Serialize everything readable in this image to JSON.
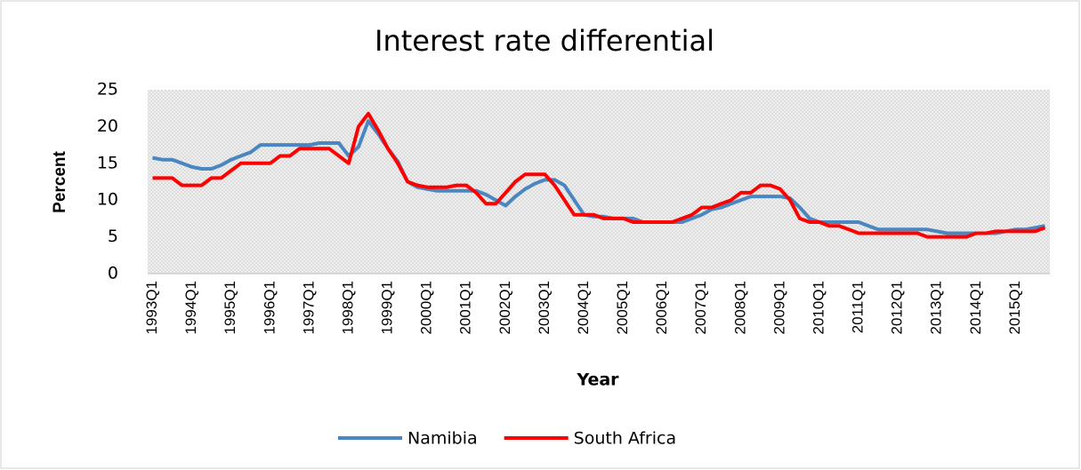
{
  "chart_data": {
    "type": "line",
    "title": "Interest rate differential",
    "x_label": "Year",
    "y_label": "Percent",
    "categories": [
      "1993Q1",
      null,
      null,
      null,
      "1994Q1",
      null,
      null,
      null,
      "1995Q1",
      null,
      null,
      null,
      "1996Q1",
      null,
      null,
      null,
      "1997Q1",
      null,
      null,
      null,
      "1998Q1",
      null,
      null,
      null,
      "1999Q1",
      null,
      null,
      null,
      "2000Q1",
      null,
      null,
      null,
      "2001Q1",
      null,
      null,
      null,
      "2002Q1",
      null,
      null,
      null,
      "2003Q1",
      null,
      null,
      null,
      "2004Q1",
      null,
      null,
      null,
      "2005Q1",
      null,
      null,
      null,
      "2006Q1",
      null,
      null,
      null,
      "2007Q1",
      null,
      null,
      null,
      "2008Q1",
      null,
      null,
      null,
      "2009Q1",
      null,
      null,
      null,
      "2010Q1",
      null,
      null,
      null,
      "2011Q1",
      null,
      null,
      null,
      "2012Q1",
      null,
      null,
      null,
      "2013Q1",
      null,
      null,
      null,
      "2014Q1",
      null,
      null,
      null,
      "2015Q1",
      null,
      null,
      null
    ],
    "series": [
      {
        "name": "Namibia",
        "color": "#4a86c0",
        "values": [
          15.75,
          15.5,
          15.5,
          15,
          14.5,
          14.25,
          14.25,
          14.75,
          15.5,
          16,
          16.5,
          17.5,
          17.5,
          17.5,
          17.5,
          17.5,
          17.5,
          17.75,
          17.75,
          17.75,
          16,
          17.25,
          20.75,
          19,
          17,
          15.25,
          12.5,
          11.75,
          11.5,
          11.25,
          11.25,
          11.25,
          11.25,
          11.25,
          10.75,
          10,
          9.25,
          10.5,
          11.5,
          12.25,
          12.75,
          12.75,
          12,
          10,
          8,
          7.75,
          7.75,
          7.5,
          7.5,
          7.5,
          7,
          7,
          7,
          7,
          7,
          7.5,
          8,
          8.75,
          9,
          9.5,
          10,
          10.5,
          10.5,
          10.5,
          10.5,
          10.25,
          9,
          7.5,
          7,
          7,
          7,
          7,
          7,
          6.5,
          6,
          6,
          6,
          6,
          6,
          6,
          5.75,
          5.5,
          5.5,
          5.5,
          5.5,
          5.5,
          5.5,
          5.75,
          6,
          6,
          6.25,
          6.5
        ]
      },
      {
        "name": "South Africa",
        "color": "#ff0000",
        "values": [
          13,
          13,
          13,
          12,
          12,
          12,
          13,
          13,
          14,
          15,
          15,
          15,
          15,
          16,
          16,
          17,
          17,
          17,
          17,
          16,
          15,
          20,
          21.75,
          19.5,
          17,
          15,
          12.5,
          12,
          11.75,
          11.75,
          11.75,
          12,
          12,
          11,
          9.5,
          9.5,
          11,
          12.5,
          13.5,
          13.5,
          13.5,
          12,
          10,
          8,
          8,
          8,
          7.5,
          7.5,
          7.5,
          7,
          7,
          7,
          7,
          7,
          7.5,
          8,
          9,
          9,
          9.5,
          10,
          11,
          11,
          12,
          12,
          11.5,
          10,
          7.5,
          7,
          7,
          6.5,
          6.5,
          6,
          5.5,
          5.5,
          5.5,
          5.5,
          5.5,
          5.5,
          5.5,
          5,
          5,
          5,
          5,
          5,
          5.5,
          5.5,
          5.75,
          5.75,
          5.75,
          5.75,
          5.75,
          6.25
        ]
      }
    ],
    "ylim": [
      0,
      25
    ],
    "yticks": [
      0,
      5,
      10,
      15,
      20,
      25
    ],
    "legend": "bottom"
  }
}
